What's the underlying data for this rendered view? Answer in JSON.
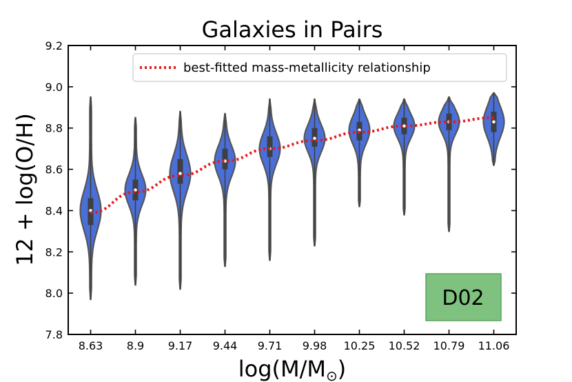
{
  "chart_data": {
    "type": "violin",
    "title": "Galaxies in Pairs",
    "xlabel": "log(M/M",
    "xlabel_sub": "⊙",
    "xlabel_close": ")",
    "ylabel": "12 + log(O/H)",
    "ylim": [
      7.8,
      9.2
    ],
    "yticks": [
      "7.8",
      "8.0",
      "8.2",
      "8.4",
      "8.6",
      "8.8",
      "9.0",
      "9.2"
    ],
    "categories": [
      "8.63",
      "8.9",
      "9.17",
      "9.44",
      "9.71",
      "9.98",
      "10.25",
      "10.52",
      "10.79",
      "11.06"
    ],
    "violins": [
      {
        "min": 7.97,
        "q1": 8.33,
        "median": 8.4,
        "q3": 8.46,
        "max": 8.95
      },
      {
        "min": 8.04,
        "q1": 8.45,
        "median": 8.5,
        "q3": 8.55,
        "max": 8.85
      },
      {
        "min": 8.02,
        "q1": 8.53,
        "median": 8.58,
        "q3": 8.65,
        "max": 8.88
      },
      {
        "min": 8.13,
        "q1": 8.6,
        "median": 8.64,
        "q3": 8.7,
        "max": 8.87
      },
      {
        "min": 8.16,
        "q1": 8.66,
        "median": 8.7,
        "q3": 8.76,
        "max": 8.94
      },
      {
        "min": 8.23,
        "q1": 8.71,
        "median": 8.75,
        "q3": 8.8,
        "max": 8.94
      },
      {
        "min": 8.42,
        "q1": 8.74,
        "median": 8.79,
        "q3": 8.83,
        "max": 8.94
      },
      {
        "min": 8.38,
        "q1": 8.77,
        "median": 8.81,
        "q3": 8.85,
        "max": 8.94
      },
      {
        "min": 8.3,
        "q1": 8.79,
        "median": 8.83,
        "q3": 8.87,
        "max": 8.95
      },
      {
        "min": 8.62,
        "q1": 8.78,
        "median": 8.83,
        "q3": 8.88,
        "max": 8.97
      }
    ],
    "fit_line": {
      "name": "best-fitted mass-metallicity relationship",
      "values": [
        8.39,
        8.49,
        8.57,
        8.64,
        8.7,
        8.74,
        8.78,
        8.81,
        8.83,
        8.85
      ]
    },
    "legend_position": "top-right",
    "badge": "D02",
    "colors": {
      "violin": "#4a6fd9",
      "outline": "#555555",
      "box": "#3f3f3f",
      "median": "#ffffff",
      "fit": "#e31a1c",
      "badge_fill": "#7fc27f",
      "badge_edge": "#5aa35a"
    }
  }
}
